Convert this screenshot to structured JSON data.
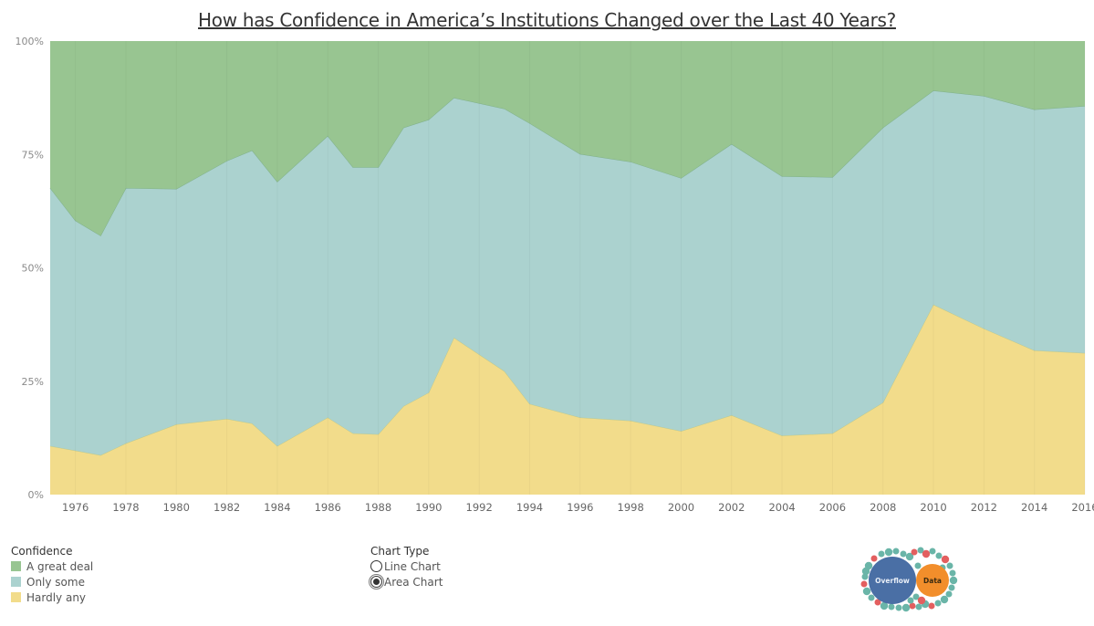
{
  "title": "How has Confidence in America’s Institutions Changed over the Last 40 Years?",
  "legend": {
    "title": "Confidence",
    "items": [
      {
        "label": "A great deal",
        "color": "#98c591"
      },
      {
        "label": "Only some",
        "color": "#abd2cf"
      },
      {
        "label": "Hardly any",
        "color": "#f2dc8b"
      }
    ]
  },
  "chart_type_control": {
    "title": "Chart Type",
    "options": [
      {
        "label": "Line Chart",
        "selected": false
      },
      {
        "label": "Area Chart",
        "selected": true
      }
    ]
  },
  "logo": {
    "left_text": "Overflow",
    "right_text": "Data",
    "left_color": "#4a6fa5",
    "right_color": "#f28e2b"
  },
  "chart_data": {
    "type": "area",
    "stacked": true,
    "normalized": true,
    "title": "How has Confidence in America’s Institutions Changed over the Last 40 Years?",
    "xlabel": "",
    "ylabel": "",
    "xlim": [
      1975,
      2016
    ],
    "ylim": [
      0,
      100
    ],
    "y_ticks": [
      "0%",
      "25%",
      "50%",
      "75%",
      "100%"
    ],
    "y_tick_values": [
      0,
      25,
      50,
      75,
      100
    ],
    "x_ticks": [
      "1976",
      "1978",
      "1980",
      "1982",
      "1984",
      "1986",
      "1988",
      "1990",
      "1992",
      "1994",
      "1996",
      "1998",
      "2000",
      "2002",
      "2004",
      "2006",
      "2008",
      "2010",
      "2012",
      "2014",
      "2016"
    ],
    "x": [
      1975,
      1976,
      1977,
      1978,
      1980,
      1982,
      1983,
      1984,
      1986,
      1987,
      1988,
      1989,
      1990,
      1991,
      1993,
      1994,
      1996,
      1998,
      2000,
      2002,
      2004,
      2006,
      2008,
      2010,
      2012,
      2014,
      2016
    ],
    "series": [
      {
        "name": "Hardly any",
        "color": "#f2dc8b",
        "values": [
          10.7,
          9.7,
          8.7,
          11.3,
          15.5,
          16.7,
          15.7,
          10.7,
          17.0,
          13.5,
          13.3,
          19.5,
          22.5,
          34.6,
          27.2,
          20.0,
          17.0,
          16.3,
          14.0,
          17.5,
          13.0,
          13.5,
          20.3,
          41.9,
          36.6,
          31.8,
          31.2
        ]
      },
      {
        "name": "Only some",
        "color": "#abd2cf",
        "values": [
          56.9,
          50.7,
          48.4,
          56.3,
          51.9,
          56.9,
          60.2,
          58.3,
          62.1,
          58.7,
          58.9,
          61.4,
          60.2,
          52.9,
          57.9,
          61.9,
          58.1,
          57.1,
          55.8,
          59.8,
          57.2,
          56.5,
          60.6,
          47.2,
          51.3,
          53.1,
          54.5
        ]
      },
      {
        "name": "A great deal",
        "color": "#98c591",
        "values": [
          32.4,
          39.6,
          42.9,
          32.4,
          32.6,
          26.4,
          24.1,
          31.0,
          20.9,
          27.8,
          27.8,
          19.1,
          17.3,
          12.5,
          14.9,
          18.1,
          24.9,
          26.6,
          30.2,
          22.7,
          29.8,
          30.0,
          19.1,
          10.9,
          12.1,
          15.1,
          14.3
        ]
      }
    ],
    "grid": true,
    "legend_position": "bottom-left"
  }
}
